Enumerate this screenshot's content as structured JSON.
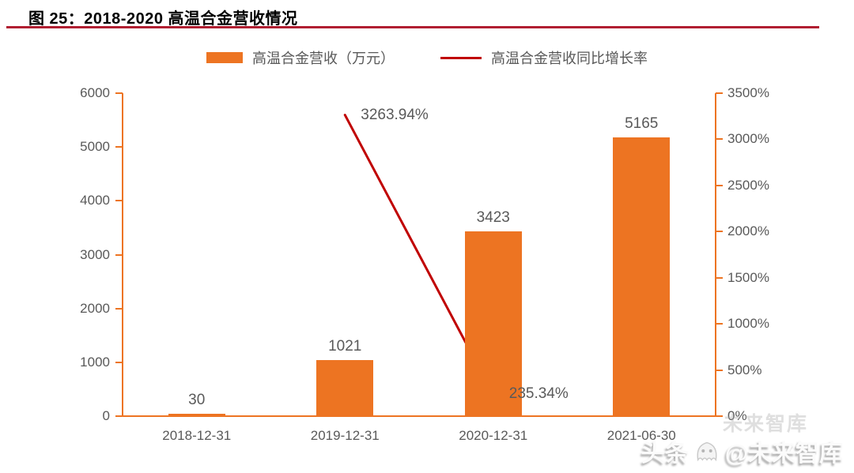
{
  "header": {
    "title": "图 25：2018-2020 高温合金营收情况"
  },
  "legend": [
    {
      "label": "高温合金营收（万元）",
      "type": "bar",
      "color": "#ed7422"
    },
    {
      "label": "高温合金营收同比增长率",
      "type": "line",
      "color": "#c00000"
    }
  ],
  "chart_data": {
    "type": "bar",
    "subtype": "bar+line combo, dual axis",
    "title": "图 25：2018-2020 高温合金营收情况",
    "categories": [
      "2018-12-31",
      "2019-12-31",
      "2020-12-31",
      "2021-06-30"
    ],
    "series": [
      {
        "name": "高温合金营收（万元）",
        "type": "bar",
        "axis": "left",
        "color": "#ed7422",
        "values": [
          30,
          1021,
          3423,
          5165
        ],
        "labels": [
          "30",
          "1021",
          "3423",
          "5165"
        ]
      },
      {
        "name": "高温合金营收同比增长率",
        "type": "line",
        "axis": "right",
        "color": "#c00000",
        "values": [
          null,
          3263.94,
          235.34,
          null
        ],
        "labels": [
          null,
          "3263.94%",
          "235.34%",
          null
        ]
      }
    ],
    "left_axis": {
      "min": 0,
      "max": 6000,
      "step": 1000,
      "ticks": [
        "0",
        "1000",
        "2000",
        "3000",
        "4000",
        "5000",
        "6000"
      ]
    },
    "right_axis": {
      "min": 0,
      "max": 3500,
      "step": 500,
      "ticks": [
        "0%",
        "500%",
        "1000%",
        "1500%",
        "2000%",
        "2500%",
        "3000%",
        "3500%"
      ]
    },
    "grid": false,
    "legend_position": "top"
  },
  "watermark": {
    "prefix": "头条",
    "suffix": "@未来智库",
    "echo": "未来智库"
  },
  "colors": {
    "accent_orange": "#ed7422",
    "accent_red": "#c00000",
    "title_underline": "#b11f32",
    "axis_text": "#595959"
  }
}
